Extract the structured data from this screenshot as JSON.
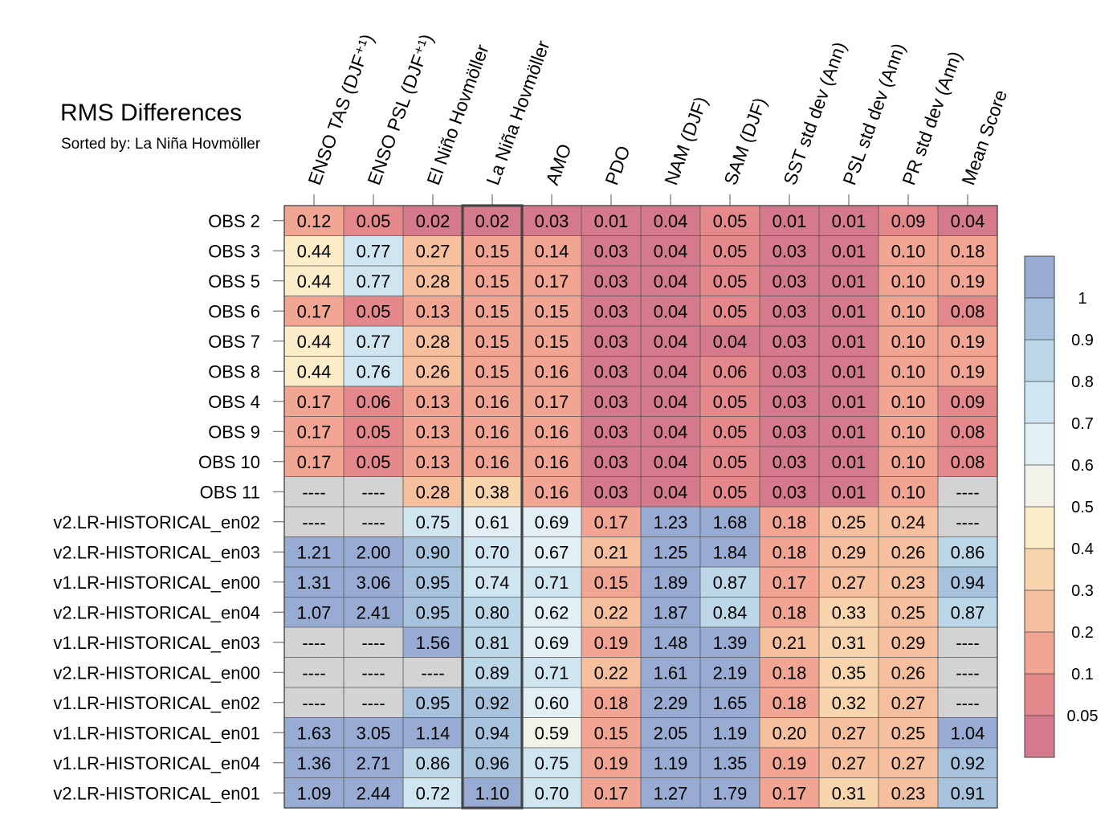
{
  "title": "RMS Differences",
  "subtitle": "Sorted by: La Niña Hovmöller",
  "chart_data": {
    "type": "heatmap",
    "title": "RMS Differences",
    "subtitle": "Sorted by: La Niña Hovmöller",
    "columns": [
      "ENSO TAS (DJF⁺¹)",
      "ENSO PSL (DJF⁺¹)",
      "El Niño Hovmöller",
      "La Niña Hovmöller",
      "AMO",
      "PDO",
      "NAM (DJF)",
      "SAM (DJF)",
      "SST std dev (Ann)",
      "PSL std dev (Ann)",
      "PR std dev (Ann)",
      "Mean Score"
    ],
    "rows": [
      "OBS 2",
      "OBS 3",
      "OBS 5",
      "OBS 6",
      "OBS 7",
      "OBS 8",
      "OBS 4",
      "OBS 9",
      "OBS 10",
      "OBS 11",
      "v2.LR-HISTORICAL_en02",
      "v2.LR-HISTORICAL_en03",
      "v1.LR-HISTORICAL_en00",
      "v2.LR-HISTORICAL_en04",
      "v1.LR-HISTORICAL_en03",
      "v2.LR-HISTORICAL_en00",
      "v1.LR-HISTORICAL_en02",
      "v1.LR-HISTORICAL_en01",
      "v1.LR-HISTORICAL_en04",
      "v2.LR-HISTORICAL_en01"
    ],
    "values": [
      [
        "0.12",
        "0.05",
        "0.02",
        "0.02",
        "0.03",
        "0.01",
        "0.04",
        "0.05",
        "0.01",
        "0.01",
        "0.09",
        "0.04"
      ],
      [
        "0.44",
        "0.77",
        "0.27",
        "0.15",
        "0.14",
        "0.03",
        "0.04",
        "0.05",
        "0.03",
        "0.01",
        "0.10",
        "0.18"
      ],
      [
        "0.44",
        "0.77",
        "0.28",
        "0.15",
        "0.17",
        "0.03",
        "0.04",
        "0.05",
        "0.03",
        "0.01",
        "0.10",
        "0.19"
      ],
      [
        "0.17",
        "0.05",
        "0.13",
        "0.15",
        "0.15",
        "0.03",
        "0.04",
        "0.05",
        "0.03",
        "0.01",
        "0.10",
        "0.08"
      ],
      [
        "0.44",
        "0.77",
        "0.28",
        "0.15",
        "0.15",
        "0.03",
        "0.04",
        "0.04",
        "0.03",
        "0.01",
        "0.10",
        "0.19"
      ],
      [
        "0.44",
        "0.76",
        "0.26",
        "0.15",
        "0.16",
        "0.03",
        "0.04",
        "0.06",
        "0.03",
        "0.01",
        "0.10",
        "0.19"
      ],
      [
        "0.17",
        "0.06",
        "0.13",
        "0.16",
        "0.17",
        "0.03",
        "0.04",
        "0.05",
        "0.03",
        "0.01",
        "0.10",
        "0.09"
      ],
      [
        "0.17",
        "0.05",
        "0.13",
        "0.16",
        "0.16",
        "0.03",
        "0.04",
        "0.05",
        "0.03",
        "0.01",
        "0.10",
        "0.08"
      ],
      [
        "0.17",
        "0.05",
        "0.13",
        "0.16",
        "0.16",
        "0.03",
        "0.04",
        "0.05",
        "0.03",
        "0.01",
        "0.10",
        "0.08"
      ],
      [
        "----",
        "----",
        "0.28",
        "0.38",
        "0.16",
        "0.03",
        "0.04",
        "0.05",
        "0.03",
        "0.01",
        "0.10",
        "----"
      ],
      [
        "----",
        "----",
        "0.75",
        "0.61",
        "0.69",
        "0.17",
        "1.23",
        "1.68",
        "0.18",
        "0.25",
        "0.24",
        "----"
      ],
      [
        "1.21",
        "2.00",
        "0.90",
        "0.70",
        "0.67",
        "0.21",
        "1.25",
        "1.84",
        "0.18",
        "0.29",
        "0.26",
        "0.86"
      ],
      [
        "1.31",
        "3.06",
        "0.95",
        "0.74",
        "0.71",
        "0.15",
        "1.89",
        "0.87",
        "0.17",
        "0.27",
        "0.23",
        "0.94"
      ],
      [
        "1.07",
        "2.41",
        "0.95",
        "0.80",
        "0.62",
        "0.22",
        "1.87",
        "0.84",
        "0.18",
        "0.33",
        "0.25",
        "0.87"
      ],
      [
        "----",
        "----",
        "1.56",
        "0.81",
        "0.69",
        "0.19",
        "1.48",
        "1.39",
        "0.21",
        "0.31",
        "0.29",
        "----"
      ],
      [
        "----",
        "----",
        "----",
        "0.89",
        "0.71",
        "0.22",
        "1.61",
        "2.19",
        "0.18",
        "0.35",
        "0.26",
        "----"
      ],
      [
        "----",
        "----",
        "0.95",
        "0.92",
        "0.60",
        "0.18",
        "2.29",
        "1.65",
        "0.18",
        "0.32",
        "0.27",
        "----"
      ],
      [
        "1.63",
        "3.05",
        "1.14",
        "0.94",
        "0.59",
        "0.15",
        "2.05",
        "1.19",
        "0.20",
        "0.27",
        "0.25",
        "1.04"
      ],
      [
        "1.36",
        "2.71",
        "0.86",
        "0.96",
        "0.75",
        "0.19",
        "1.19",
        "1.35",
        "0.19",
        "0.27",
        "0.27",
        "0.92"
      ],
      [
        "1.09",
        "2.44",
        "0.72",
        "1.10",
        "0.70",
        "0.17",
        "1.27",
        "1.79",
        "0.17",
        "0.31",
        "0.23",
        "0.91"
      ]
    ],
    "missing_label": "----",
    "missing_color": "#d3d3d3",
    "highlighted_column": "La Niña Hovmöller",
    "colorbar": {
      "tick_labels": [
        "1",
        "0.9",
        "0.8",
        "0.7",
        "0.6",
        "0.5",
        "0.4",
        "0.3",
        "0.2",
        "0.1",
        "0.05"
      ],
      "levels": [
        0.05,
        0.1,
        0.2,
        0.3,
        0.4,
        0.5,
        0.6,
        0.7,
        0.8,
        0.9,
        1
      ],
      "colors_low_to_high": [
        "#d47a8c",
        "#e4888c",
        "#f1a592",
        "#f6c09f",
        "#f9d5ad",
        "#fcecc8",
        "#f3f2e8",
        "#e2f0f6",
        "#cfe5ef",
        "#bcd7e8",
        "#a7c2dd",
        "#98acd3"
      ]
    }
  }
}
